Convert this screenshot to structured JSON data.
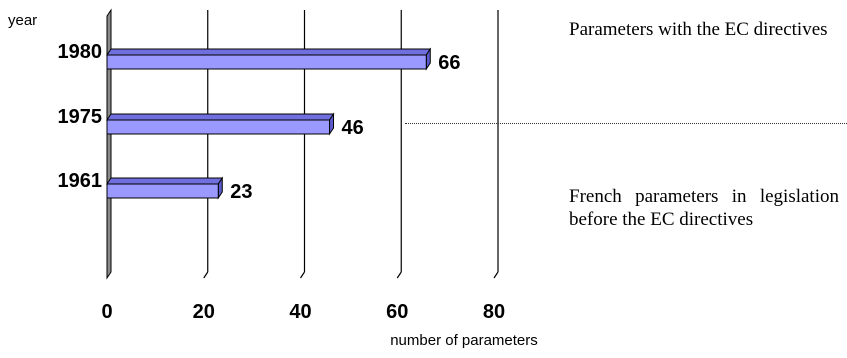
{
  "chart_data": {
    "type": "bar",
    "orientation": "horizontal",
    "style": "3d",
    "categories": [
      "1980",
      "1975",
      "1961"
    ],
    "values": [
      66,
      46,
      23
    ],
    "data_labels": [
      "66",
      "46",
      "23"
    ],
    "ylabel": "year",
    "xlabel": "number of parameters",
    "xlim": [
      0,
      80
    ],
    "xticks": [
      "0",
      "20",
      "40",
      "60",
      "80"
    ],
    "grid": true,
    "bar_color": "#9999ff",
    "bar_side_color": "#5a5acc"
  },
  "annotations": {
    "top": "Parameters with the EC directives",
    "bottom": "French parameters in legislation before the EC directives"
  }
}
